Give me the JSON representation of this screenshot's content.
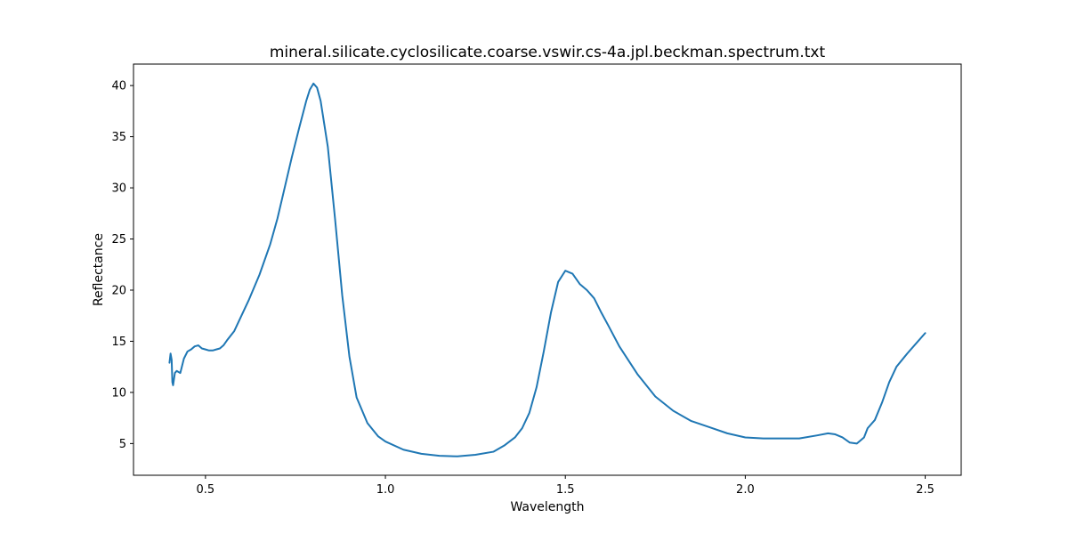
{
  "chart_data": {
    "type": "line",
    "title": "mineral.silicate.cyclosilicate.coarse.vswir.cs-4a.jpl.beckman.spectrum.txt",
    "xlabel": "Wavelength",
    "ylabel": "Reflectance",
    "xlim": [
      0.3,
      2.6
    ],
    "ylim": [
      1.9,
      42.1
    ],
    "xticks": [
      0.5,
      1.0,
      1.5,
      2.0,
      2.5
    ],
    "xtick_labels": [
      "0.5",
      "1.0",
      "1.5",
      "2.0",
      "2.5"
    ],
    "yticks": [
      5,
      10,
      15,
      20,
      25,
      30,
      35,
      40
    ],
    "ytick_labels": [
      "5",
      "10",
      "15",
      "20",
      "25",
      "30",
      "35",
      "40"
    ],
    "grid": false,
    "legend": "none",
    "series": [
      {
        "color": "#1f77b4",
        "points": [
          [
            0.4,
            12.9
          ],
          [
            0.403,
            13.8
          ],
          [
            0.406,
            13.2
          ],
          [
            0.408,
            11.0
          ],
          [
            0.41,
            10.7
          ],
          [
            0.415,
            11.9
          ],
          [
            0.42,
            12.1
          ],
          [
            0.43,
            11.9
          ],
          [
            0.44,
            13.3
          ],
          [
            0.45,
            14.0
          ],
          [
            0.46,
            14.2
          ],
          [
            0.47,
            14.5
          ],
          [
            0.48,
            14.6
          ],
          [
            0.49,
            14.3
          ],
          [
            0.5,
            14.2
          ],
          [
            0.51,
            14.1
          ],
          [
            0.52,
            14.1
          ],
          [
            0.53,
            14.2
          ],
          [
            0.54,
            14.3
          ],
          [
            0.55,
            14.6
          ],
          [
            0.56,
            15.1
          ],
          [
            0.58,
            16.0
          ],
          [
            0.6,
            17.5
          ],
          [
            0.62,
            19.0
          ],
          [
            0.65,
            21.5
          ],
          [
            0.68,
            24.5
          ],
          [
            0.7,
            27.0
          ],
          [
            0.72,
            30.0
          ],
          [
            0.74,
            33.0
          ],
          [
            0.76,
            35.8
          ],
          [
            0.78,
            38.5
          ],
          [
            0.79,
            39.6
          ],
          [
            0.8,
            40.2
          ],
          [
            0.81,
            39.8
          ],
          [
            0.82,
            38.5
          ],
          [
            0.84,
            34.0
          ],
          [
            0.86,
            27.0
          ],
          [
            0.88,
            19.5
          ],
          [
            0.9,
            13.5
          ],
          [
            0.92,
            9.5
          ],
          [
            0.95,
            7.0
          ],
          [
            0.98,
            5.7
          ],
          [
            1.0,
            5.2
          ],
          [
            1.05,
            4.4
          ],
          [
            1.1,
            4.0
          ],
          [
            1.15,
            3.8
          ],
          [
            1.2,
            3.75
          ],
          [
            1.25,
            3.9
          ],
          [
            1.3,
            4.2
          ],
          [
            1.33,
            4.8
          ],
          [
            1.36,
            5.6
          ],
          [
            1.38,
            6.5
          ],
          [
            1.4,
            8.0
          ],
          [
            1.42,
            10.5
          ],
          [
            1.44,
            14.0
          ],
          [
            1.46,
            17.8
          ],
          [
            1.48,
            20.8
          ],
          [
            1.5,
            21.9
          ],
          [
            1.52,
            21.6
          ],
          [
            1.54,
            20.6
          ],
          [
            1.56,
            20.0
          ],
          [
            1.58,
            19.2
          ],
          [
            1.6,
            17.8
          ],
          [
            1.62,
            16.5
          ],
          [
            1.65,
            14.5
          ],
          [
            1.7,
            11.8
          ],
          [
            1.75,
            9.6
          ],
          [
            1.8,
            8.2
          ],
          [
            1.85,
            7.2
          ],
          [
            1.9,
            6.6
          ],
          [
            1.95,
            6.0
          ],
          [
            2.0,
            5.6
          ],
          [
            2.05,
            5.5
          ],
          [
            2.1,
            5.5
          ],
          [
            2.15,
            5.5
          ],
          [
            2.2,
            5.8
          ],
          [
            2.23,
            6.0
          ],
          [
            2.25,
            5.9
          ],
          [
            2.27,
            5.6
          ],
          [
            2.29,
            5.1
          ],
          [
            2.31,
            5.0
          ],
          [
            2.33,
            5.6
          ],
          [
            2.34,
            6.5
          ],
          [
            2.36,
            7.3
          ],
          [
            2.38,
            9.0
          ],
          [
            2.4,
            11.0
          ],
          [
            2.42,
            12.5
          ],
          [
            2.45,
            13.8
          ],
          [
            2.48,
            15.0
          ],
          [
            2.5,
            15.8
          ]
        ]
      }
    ]
  }
}
